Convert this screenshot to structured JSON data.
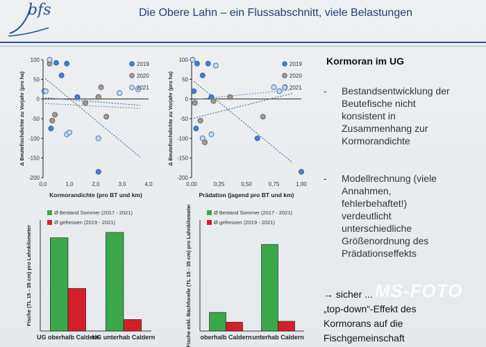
{
  "header": {
    "logo_text": "bfs",
    "title": "Die Obere Lahn – ein Flussabschnitt, viele Belastungen"
  },
  "right_panel": {
    "heading": "Kormoran im UG",
    "bullets": [
      {
        "dash": "-",
        "text": "Bestandsentwicklung der\nBeutefische nicht\nkonsistent in\nZusammenhang zur\nKormorandichte"
      },
      {
        "dash": "-",
        "text": "Modellrechnung (viele\nAnnahmen,\nfehlerbehaftet!)\nverdeutlicht\nunterschiedliche\nGrößenordnung des\nPrädationseffekts"
      }
    ],
    "conclusion": "→ sicher ...\n„top-down“-Effekt des\nKormorans auf die\nFischgemeinschaft",
    "watermark": "MS-FOTO"
  },
  "chart_data": [
    {
      "type": "scatter",
      "ylabel": "Δ Beutefischdichte zu Vorjahr (pro ha)",
      "xlabel": "Kormorandichte (pro BT und km)",
      "xlim": [
        0,
        4
      ],
      "ylim": [
        -200,
        100
      ],
      "x_ticks": [
        "0,0",
        "1,0",
        "2,0",
        "3,0",
        "4,0"
      ],
      "y_ticks": [
        "100",
        "50",
        "0",
        "-50",
        "-100",
        "-150",
        "-200"
      ],
      "legend": [
        "2019",
        "2020",
        "2021"
      ],
      "colors": {
        "2019": "#4a7cc9",
        "2020": "#b8956a",
        "2021": "#c6d9ee"
      },
      "series": [
        {
          "name": "2019",
          "x": [
            0.05,
            0.3,
            0.5,
            0.7,
            0.9,
            1.3,
            2.1,
            2.1
          ],
          "y": [
            20,
            -75,
            92,
            60,
            90,
            5,
            5,
            -185
          ]
        },
        {
          "name": "2020",
          "x": [
            0.25,
            0.35,
            0.45,
            1.6,
            2.1,
            2.2,
            2.4
          ],
          "y": [
            90,
            -55,
            -40,
            -10,
            5,
            30,
            -45
          ]
        },
        {
          "name": "2021",
          "x": [
            0.1,
            0.25,
            0.9,
            1.0,
            2.1,
            2.9,
            3.6
          ],
          "y": [
            20,
            100,
            -90,
            -85,
            -100,
            15,
            25
          ]
        }
      ]
    },
    {
      "type": "scatter",
      "ylabel": "Δ Beutefischdichte zu Vorjahr (pro ha)",
      "xlabel": "Prädation (jagend pro BT und km)",
      "xlim": [
        0,
        1
      ],
      "ylim": [
        -200,
        100
      ],
      "x_ticks": [
        "0,00",
        "0,25",
        "0,50",
        "0,75",
        "1,00"
      ],
      "y_ticks": [
        "100",
        "50",
        "0",
        "-50",
        "-100",
        "-150",
        "-200"
      ],
      "legend": [
        "2019",
        "2020",
        "2021"
      ],
      "colors": {
        "2019": "#4a7cc9",
        "2020": "#b8956a",
        "2021": "#c6d9ee"
      },
      "series": [
        {
          "name": "2019",
          "x": [
            0.02,
            0.04,
            0.05,
            0.1,
            0.15,
            0.18,
            0.6,
            1.0
          ],
          "y": [
            20,
            -75,
            90,
            60,
            90,
            5,
            -100,
            -185
          ]
        },
        {
          "name": "2020",
          "x": [
            0.03,
            0.08,
            0.12,
            0.2,
            0.35,
            0.65,
            0.85
          ],
          "y": [
            -10,
            -55,
            -110,
            -5,
            5,
            -45,
            30
          ]
        },
        {
          "name": "2021",
          "x": [
            0.01,
            0.1,
            0.18,
            0.22,
            0.75,
            0.8
          ],
          "y": [
            100,
            -100,
            -90,
            85,
            30,
            20
          ]
        }
      ]
    },
    {
      "type": "bar",
      "ylabel": "Fische (TL 15 - 35 cm) pro Lahnkilometer",
      "categories": [
        "UG oberhalb Caldern",
        "UG unterhab Caldern"
      ],
      "legend_title": "",
      "series": [
        {
          "name": "Ø Bestand Sommer (2017 - 2021)",
          "color": "#3aa84a",
          "values": [
            210,
            222
          ]
        },
        {
          "name": "Ø gefressen (2019 - 2021)",
          "color": "#d41f2a",
          "values": [
            96,
            26
          ]
        }
      ],
      "ylim": [
        0,
        250
      ]
    },
    {
      "type": "bar",
      "ylabel": "Fische exkl. Bachforelle (TL 15 - 35 cm) pro Lahnkilometer",
      "categories": [
        "oberhalb Caldern",
        "unterhab Caldern"
      ],
      "series": [
        {
          "name": "Ø Bestand Sommer (2017 - 2021)",
          "color": "#3aa84a",
          "values": [
            42,
            195
          ]
        },
        {
          "name": "Ø gefressen (2019 - 2021)",
          "color": "#d41f2a",
          "values": [
            20,
            22
          ]
        }
      ],
      "ylim": [
        0,
        250
      ]
    }
  ]
}
